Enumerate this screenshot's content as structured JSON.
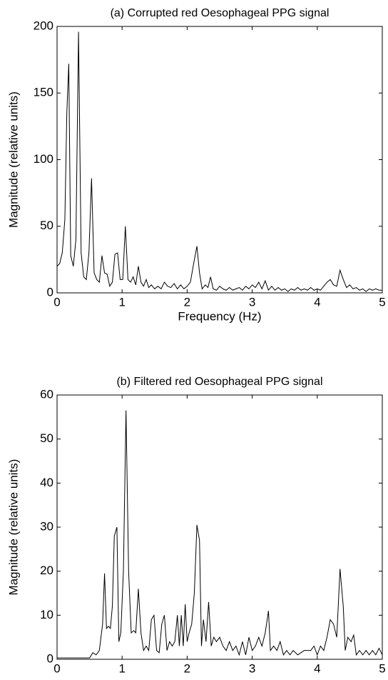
{
  "chart_data": [
    {
      "type": "line",
      "title": "(a) Corrupted red Oesophageal PPG signal",
      "x_label": "Frequency (Hz)",
      "y_label": "Magnitude (relative units)",
      "xlim": [
        0,
        5
      ],
      "ylim": [
        0,
        200
      ],
      "xticks": [
        0,
        1,
        2,
        3,
        4,
        5
      ],
      "yticks": [
        0,
        50,
        100,
        150,
        200
      ],
      "series": [
        {
          "name": "spectrum",
          "color": "#000000",
          "x": [
            0,
            0.04,
            0.08,
            0.12,
            0.15,
            0.18,
            0.21,
            0.25,
            0.29,
            0.33,
            0.37,
            0.41,
            0.45,
            0.49,
            0.53,
            0.57,
            0.61,
            0.65,
            0.69,
            0.73,
            0.77,
            0.81,
            0.85,
            0.89,
            0.93,
            0.97,
            1.01,
            1.05,
            1.09,
            1.13,
            1.17,
            1.21,
            1.25,
            1.29,
            1.33,
            1.37,
            1.41,
            1.45,
            1.5,
            1.55,
            1.6,
            1.65,
            1.7,
            1.75,
            1.8,
            1.85,
            1.9,
            1.95,
            2.0,
            2.05,
            2.1,
            2.15,
            2.19,
            2.23,
            2.28,
            2.32,
            2.36,
            2.4,
            2.45,
            2.5,
            2.55,
            2.6,
            2.65,
            2.7,
            2.75,
            2.8,
            2.85,
            2.9,
            2.95,
            3.0,
            3.05,
            3.1,
            3.15,
            3.2,
            3.25,
            3.3,
            3.35,
            3.4,
            3.45,
            3.5,
            3.55,
            3.6,
            3.65,
            3.7,
            3.75,
            3.8,
            3.85,
            3.9,
            3.95,
            4.0,
            4.05,
            4.1,
            4.15,
            4.2,
            4.25,
            4.3,
            4.35,
            4.4,
            4.45,
            4.5,
            4.55,
            4.6,
            4.65,
            4.7,
            4.75,
            4.8,
            4.85,
            4.9,
            4.95,
            5.0
          ],
          "values": [
            20,
            22,
            30,
            55,
            135,
            172,
            28,
            20,
            40,
            196,
            30,
            12,
            10,
            30,
            86,
            15,
            10,
            8,
            28,
            15,
            14,
            5,
            8,
            29,
            30,
            10,
            10,
            50,
            10,
            8,
            12,
            6,
            20,
            8,
            5,
            10,
            4,
            6,
            3,
            5,
            3,
            8,
            5,
            4,
            7,
            3,
            6,
            3,
            5,
            8,
            22,
            35,
            15,
            3,
            6,
            4,
            12,
            3,
            2,
            5,
            3,
            2,
            4,
            2,
            3,
            4,
            2,
            5,
            3,
            6,
            4,
            8,
            3,
            9,
            2,
            5,
            2,
            4,
            2,
            3,
            1,
            3,
            2,
            4,
            2,
            3,
            2,
            4,
            2,
            3,
            2,
            5,
            8,
            10,
            6,
            5,
            17,
            10,
            4,
            6,
            3,
            4,
            2,
            3,
            1,
            3,
            2,
            3,
            2,
            2
          ]
        }
      ]
    },
    {
      "type": "line",
      "title": "(b) Filtered red Oesophageal PPG signal",
      "x_label": "Frequency (Hz)",
      "y_label": "Magnitude (relative units)",
      "xlim": [
        0,
        5
      ],
      "ylim": [
        0,
        60
      ],
      "xticks": [
        0,
        1,
        2,
        3,
        4,
        5
      ],
      "yticks": [
        0,
        10,
        20,
        30,
        40,
        50,
        60
      ],
      "series": [
        {
          "name": "spectrum",
          "color": "#000000",
          "x": [
            0,
            0.5,
            0.55,
            0.6,
            0.65,
            0.7,
            0.73,
            0.76,
            0.79,
            0.82,
            0.85,
            0.88,
            0.92,
            0.95,
            0.98,
            1.02,
            1.06,
            1.1,
            1.14,
            1.18,
            1.21,
            1.25,
            1.29,
            1.33,
            1.37,
            1.41,
            1.45,
            1.49,
            1.53,
            1.57,
            1.61,
            1.65,
            1.69,
            1.73,
            1.77,
            1.81,
            1.85,
            1.88,
            1.91,
            1.94,
            1.97,
            2.0,
            2.03,
            2.07,
            2.11,
            2.15,
            2.19,
            2.22,
            2.25,
            2.29,
            2.33,
            2.37,
            2.41,
            2.45,
            2.5,
            2.55,
            2.6,
            2.65,
            2.7,
            2.75,
            2.8,
            2.85,
            2.9,
            2.95,
            3.0,
            3.05,
            3.1,
            3.15,
            3.2,
            3.25,
            3.28,
            3.33,
            3.38,
            3.43,
            3.48,
            3.53,
            3.58,
            3.63,
            3.7,
            3.8,
            3.9,
            3.95,
            4.0,
            4.05,
            4.1,
            4.15,
            4.2,
            4.25,
            4.3,
            4.35,
            4.4,
            4.43,
            4.47,
            4.52,
            4.56,
            4.6,
            4.65,
            4.7,
            4.75,
            4.8,
            4.85,
            4.9,
            4.95,
            5.0
          ],
          "values": [
            0.3,
            0.3,
            1.5,
            1,
            2,
            8,
            19.5,
            7,
            7.5,
            7,
            12,
            28,
            30,
            4,
            6,
            20,
            56.5,
            20,
            6,
            6.5,
            6,
            16,
            6,
            2,
            3,
            2,
            9,
            10,
            2,
            1.5,
            8,
            10,
            2,
            4,
            3,
            4,
            10,
            3,
            10,
            3,
            12.5,
            4,
            6,
            8,
            15,
            30.5,
            27,
            3,
            9,
            4,
            13,
            3,
            5,
            4,
            5,
            3,
            2,
            4,
            2,
            3,
            1,
            4,
            1,
            5,
            2,
            3,
            5,
            3,
            6,
            11,
            2,
            3,
            2,
            4,
            1,
            2,
            1,
            2,
            1,
            2,
            2,
            3,
            1,
            3,
            2,
            5,
            9,
            8,
            5,
            20.5,
            12,
            2,
            5,
            4,
            5.5,
            1,
            2,
            1,
            2,
            1,
            2,
            1,
            2.5,
            1
          ]
        }
      ]
    }
  ]
}
